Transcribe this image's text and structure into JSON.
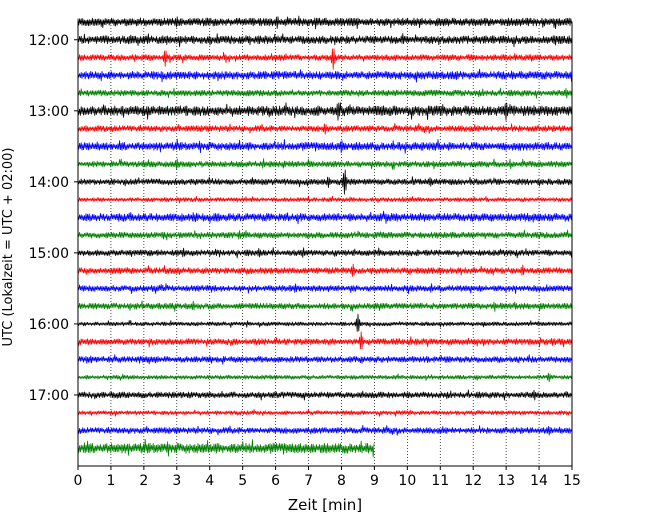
{
  "chart_data": {
    "type": "line",
    "title": "",
    "xlabel": "Zeit  [min]",
    "ylabel": "UTC (Lokalzeit = UTC + 02:00)",
    "xlim": [
      0,
      15
    ],
    "x_ticks": [
      "0",
      "1",
      "2",
      "3",
      "4",
      "5",
      "6",
      "7",
      "8",
      "9",
      "10",
      "11",
      "12",
      "13",
      "14",
      "15"
    ],
    "y_ticks": [
      "12:00",
      "13:00",
      "14:00",
      "15:00",
      "16:00",
      "17:00"
    ],
    "grid": "x-only, dotted",
    "trace_colors": [
      "#000000",
      "#ff0000",
      "#0000ff",
      "#008000"
    ],
    "traces": [
      {
        "start": "11:45",
        "color": "#000000",
        "end_min": 15,
        "amp": 4,
        "spikes": [
          [
            3,
            6
          ],
          [
            8.5,
            4
          ]
        ]
      },
      {
        "start": "12:00",
        "color": "#000000",
        "end_min": 15,
        "amp": 4,
        "spikes": [
          [
            2.7,
            5
          ],
          [
            6.5,
            4
          ]
        ]
      },
      {
        "start": "12:15",
        "color": "#ff0000",
        "end_min": 15,
        "amp": 3,
        "spikes": [
          [
            2.65,
            9
          ],
          [
            7.75,
            12
          ]
        ]
      },
      {
        "start": "12:30",
        "color": "#0000ff",
        "end_min": 15,
        "amp": 4,
        "spikes": [
          [
            11.5,
            5
          ]
        ]
      },
      {
        "start": "12:45",
        "color": "#008000",
        "end_min": 15,
        "amp": 3,
        "spikes": []
      },
      {
        "start": "13:00",
        "color": "#000000",
        "end_min": 15,
        "amp": 5,
        "spikes": [
          [
            7.9,
            10
          ],
          [
            13.0,
            10
          ]
        ]
      },
      {
        "start": "13:15",
        "color": "#ff0000",
        "end_min": 15,
        "amp": 3,
        "spikes": [
          [
            7.5,
            6
          ]
        ]
      },
      {
        "start": "13:30",
        "color": "#0000ff",
        "end_min": 15,
        "amp": 4,
        "spikes": [
          [
            8.0,
            7
          ]
        ]
      },
      {
        "start": "13:45",
        "color": "#008000",
        "end_min": 15,
        "amp": 3,
        "spikes": [
          [
            3.0,
            6
          ]
        ]
      },
      {
        "start": "14:00",
        "color": "#000000",
        "end_min": 15,
        "amp": 3,
        "spikes": [
          [
            7.6,
            6
          ],
          [
            8.1,
            14
          ],
          [
            10.7,
            5
          ]
        ]
      },
      {
        "start": "14:15",
        "color": "#ff0000",
        "end_min": 15,
        "amp": 2,
        "spikes": []
      },
      {
        "start": "14:30",
        "color": "#0000ff",
        "end_min": 15,
        "amp": 4,
        "spikes": [
          [
            3.5,
            5
          ]
        ]
      },
      {
        "start": "14:45",
        "color": "#008000",
        "end_min": 15,
        "amp": 3,
        "spikes": [
          [
            2.6,
            4
          ],
          [
            4.9,
            5
          ]
        ]
      },
      {
        "start": "15:00",
        "color": "#000000",
        "end_min": 15,
        "amp": 3,
        "spikes": [
          [
            3.2,
            5
          ],
          [
            5.5,
            5
          ]
        ]
      },
      {
        "start": "15:15",
        "color": "#ff0000",
        "end_min": 15,
        "amp": 3,
        "spikes": [
          [
            8.35,
            7
          ],
          [
            13.5,
            6
          ]
        ]
      },
      {
        "start": "15:30",
        "color": "#0000ff",
        "end_min": 15,
        "amp": 3,
        "spikes": [
          [
            6.6,
            5
          ]
        ]
      },
      {
        "start": "15:45",
        "color": "#008000",
        "end_min": 15,
        "amp": 3,
        "spikes": [
          [
            3.5,
            5
          ]
        ]
      },
      {
        "start": "16:00",
        "color": "#000000",
        "end_min": 15,
        "amp": 2,
        "spikes": [
          [
            8.5,
            10
          ]
        ]
      },
      {
        "start": "16:15",
        "color": "#ff0000",
        "end_min": 15,
        "amp": 3,
        "spikes": [
          [
            8.6,
            10
          ],
          [
            14.4,
            4
          ]
        ]
      },
      {
        "start": "16:30",
        "color": "#0000ff",
        "end_min": 15,
        "amp": 3,
        "spikes": [
          [
            0.4,
            4
          ]
        ]
      },
      {
        "start": "16:45",
        "color": "#008000",
        "end_min": 15,
        "amp": 2,
        "spikes": [
          [
            14.3,
            5
          ]
        ]
      },
      {
        "start": "17:00",
        "color": "#000000",
        "end_min": 15,
        "amp": 3,
        "spikes": []
      },
      {
        "start": "17:15",
        "color": "#ff0000",
        "end_min": 15,
        "amp": 2,
        "spikes": []
      },
      {
        "start": "17:30",
        "color": "#0000ff",
        "end_min": 15,
        "amp": 3,
        "spikes": [
          [
            14.3,
            5
          ]
        ]
      },
      {
        "start": "17:45",
        "color": "#008000",
        "end_min": 9,
        "amp": 5,
        "spikes": [
          [
            0.2,
            6
          ]
        ]
      }
    ]
  }
}
